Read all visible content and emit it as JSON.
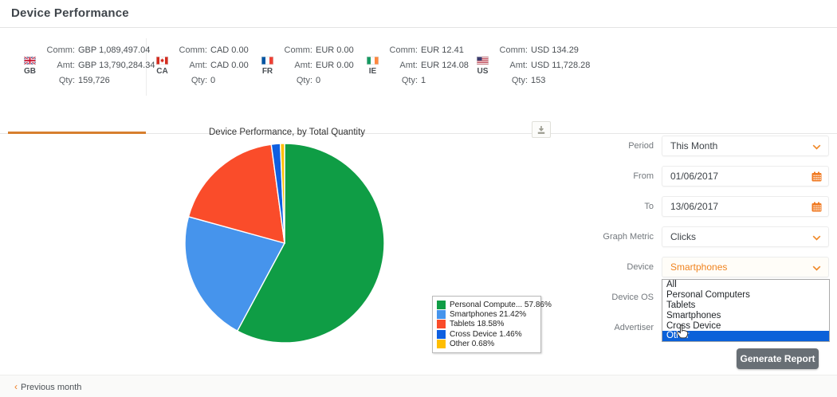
{
  "header": {
    "title": "Device Performance"
  },
  "country_tabs": [
    {
      "code": "GB",
      "active": true,
      "stats": [
        {
          "label": "Comm:",
          "value": "GBP 1,089,497.04"
        },
        {
          "label": "Amt:",
          "value": "GBP 13,790,284.34"
        },
        {
          "label": "Qty:",
          "value": "159,726"
        }
      ]
    },
    {
      "code": "CA",
      "active": false,
      "stats": [
        {
          "label": "Comm:",
          "value": "CAD 0.00"
        },
        {
          "label": "Amt:",
          "value": "CAD 0.00"
        },
        {
          "label": "Qty:",
          "value": "0"
        }
      ]
    },
    {
      "code": "FR",
      "active": false,
      "stats": [
        {
          "label": "Comm:",
          "value": "EUR 0.00"
        },
        {
          "label": "Amt:",
          "value": "EUR 0.00"
        },
        {
          "label": "Qty:",
          "value": "0"
        }
      ]
    },
    {
      "code": "IE",
      "active": false,
      "stats": [
        {
          "label": "Comm:",
          "value": "EUR 12.41"
        },
        {
          "label": "Amt:",
          "value": "EUR 124.08"
        },
        {
          "label": "Qty:",
          "value": "1"
        }
      ]
    },
    {
      "code": "US",
      "active": false,
      "stats": [
        {
          "label": "Comm:",
          "value": "USD 134.29"
        },
        {
          "label": "Amt:",
          "value": "USD 11,728.28"
        },
        {
          "label": "Qty:",
          "value": "153"
        }
      ]
    }
  ],
  "chart": {
    "title": "Device Performance, by Total Quantity",
    "download_icon": "download-icon"
  },
  "chart_data": {
    "type": "pie",
    "title": "Device Performance, by Total Quantity",
    "labels": [
      "Personal Computers",
      "Smartphones",
      "Tablets",
      "Cross Device",
      "Other"
    ],
    "values": [
      57.86,
      21.42,
      18.58,
      1.46,
      0.68
    ],
    "unit": "%",
    "colors": [
      "#0f9d45",
      "#4694ec",
      "#fa4c2a",
      "#0e5fe0",
      "#ffbe00"
    ],
    "legend_labels": [
      "Personal Compute... 57.86%",
      "Smartphones 21.42%",
      "Tablets 18.58%",
      "Cross Device 1.46%",
      "Other 0.68%"
    ],
    "legend_position": "right-bottom",
    "start_angle_deg": 0,
    "direction": "clockwise"
  },
  "filters": {
    "rows": [
      {
        "label": "Period",
        "value": "This Month",
        "control": "select",
        "state": "closed"
      },
      {
        "label": "From",
        "value": "01/06/2017",
        "control": "date",
        "state": "closed"
      },
      {
        "label": "To",
        "value": "13/06/2017",
        "control": "date",
        "state": "closed"
      },
      {
        "label": "Graph Metric",
        "value": "Clicks",
        "control": "select",
        "state": "closed"
      },
      {
        "label": "Device",
        "value": "Smartphones",
        "control": "select",
        "state": "open",
        "value_style": "accent"
      },
      {
        "label": "Device OS",
        "value": "",
        "control": "select",
        "state": "obscured"
      },
      {
        "label": "Advertiser",
        "value": "",
        "control": "select",
        "state": "obscured"
      }
    ]
  },
  "device_dropdown": {
    "options": [
      "All",
      "Personal Computers",
      "Tablets",
      "Smartphones",
      "Cross Device",
      "Other"
    ],
    "highlighted_option": "Other"
  },
  "actions": {
    "generate_report": "Generate Report"
  },
  "footer": {
    "chevron": "‹",
    "previous_month": "Previous month"
  },
  "colors": {
    "accent_orange": "#ef7d22",
    "active_tab_underline": "#d77f2e",
    "dropdown_highlight": "#0b61d9",
    "button_bg": "#686f75"
  }
}
